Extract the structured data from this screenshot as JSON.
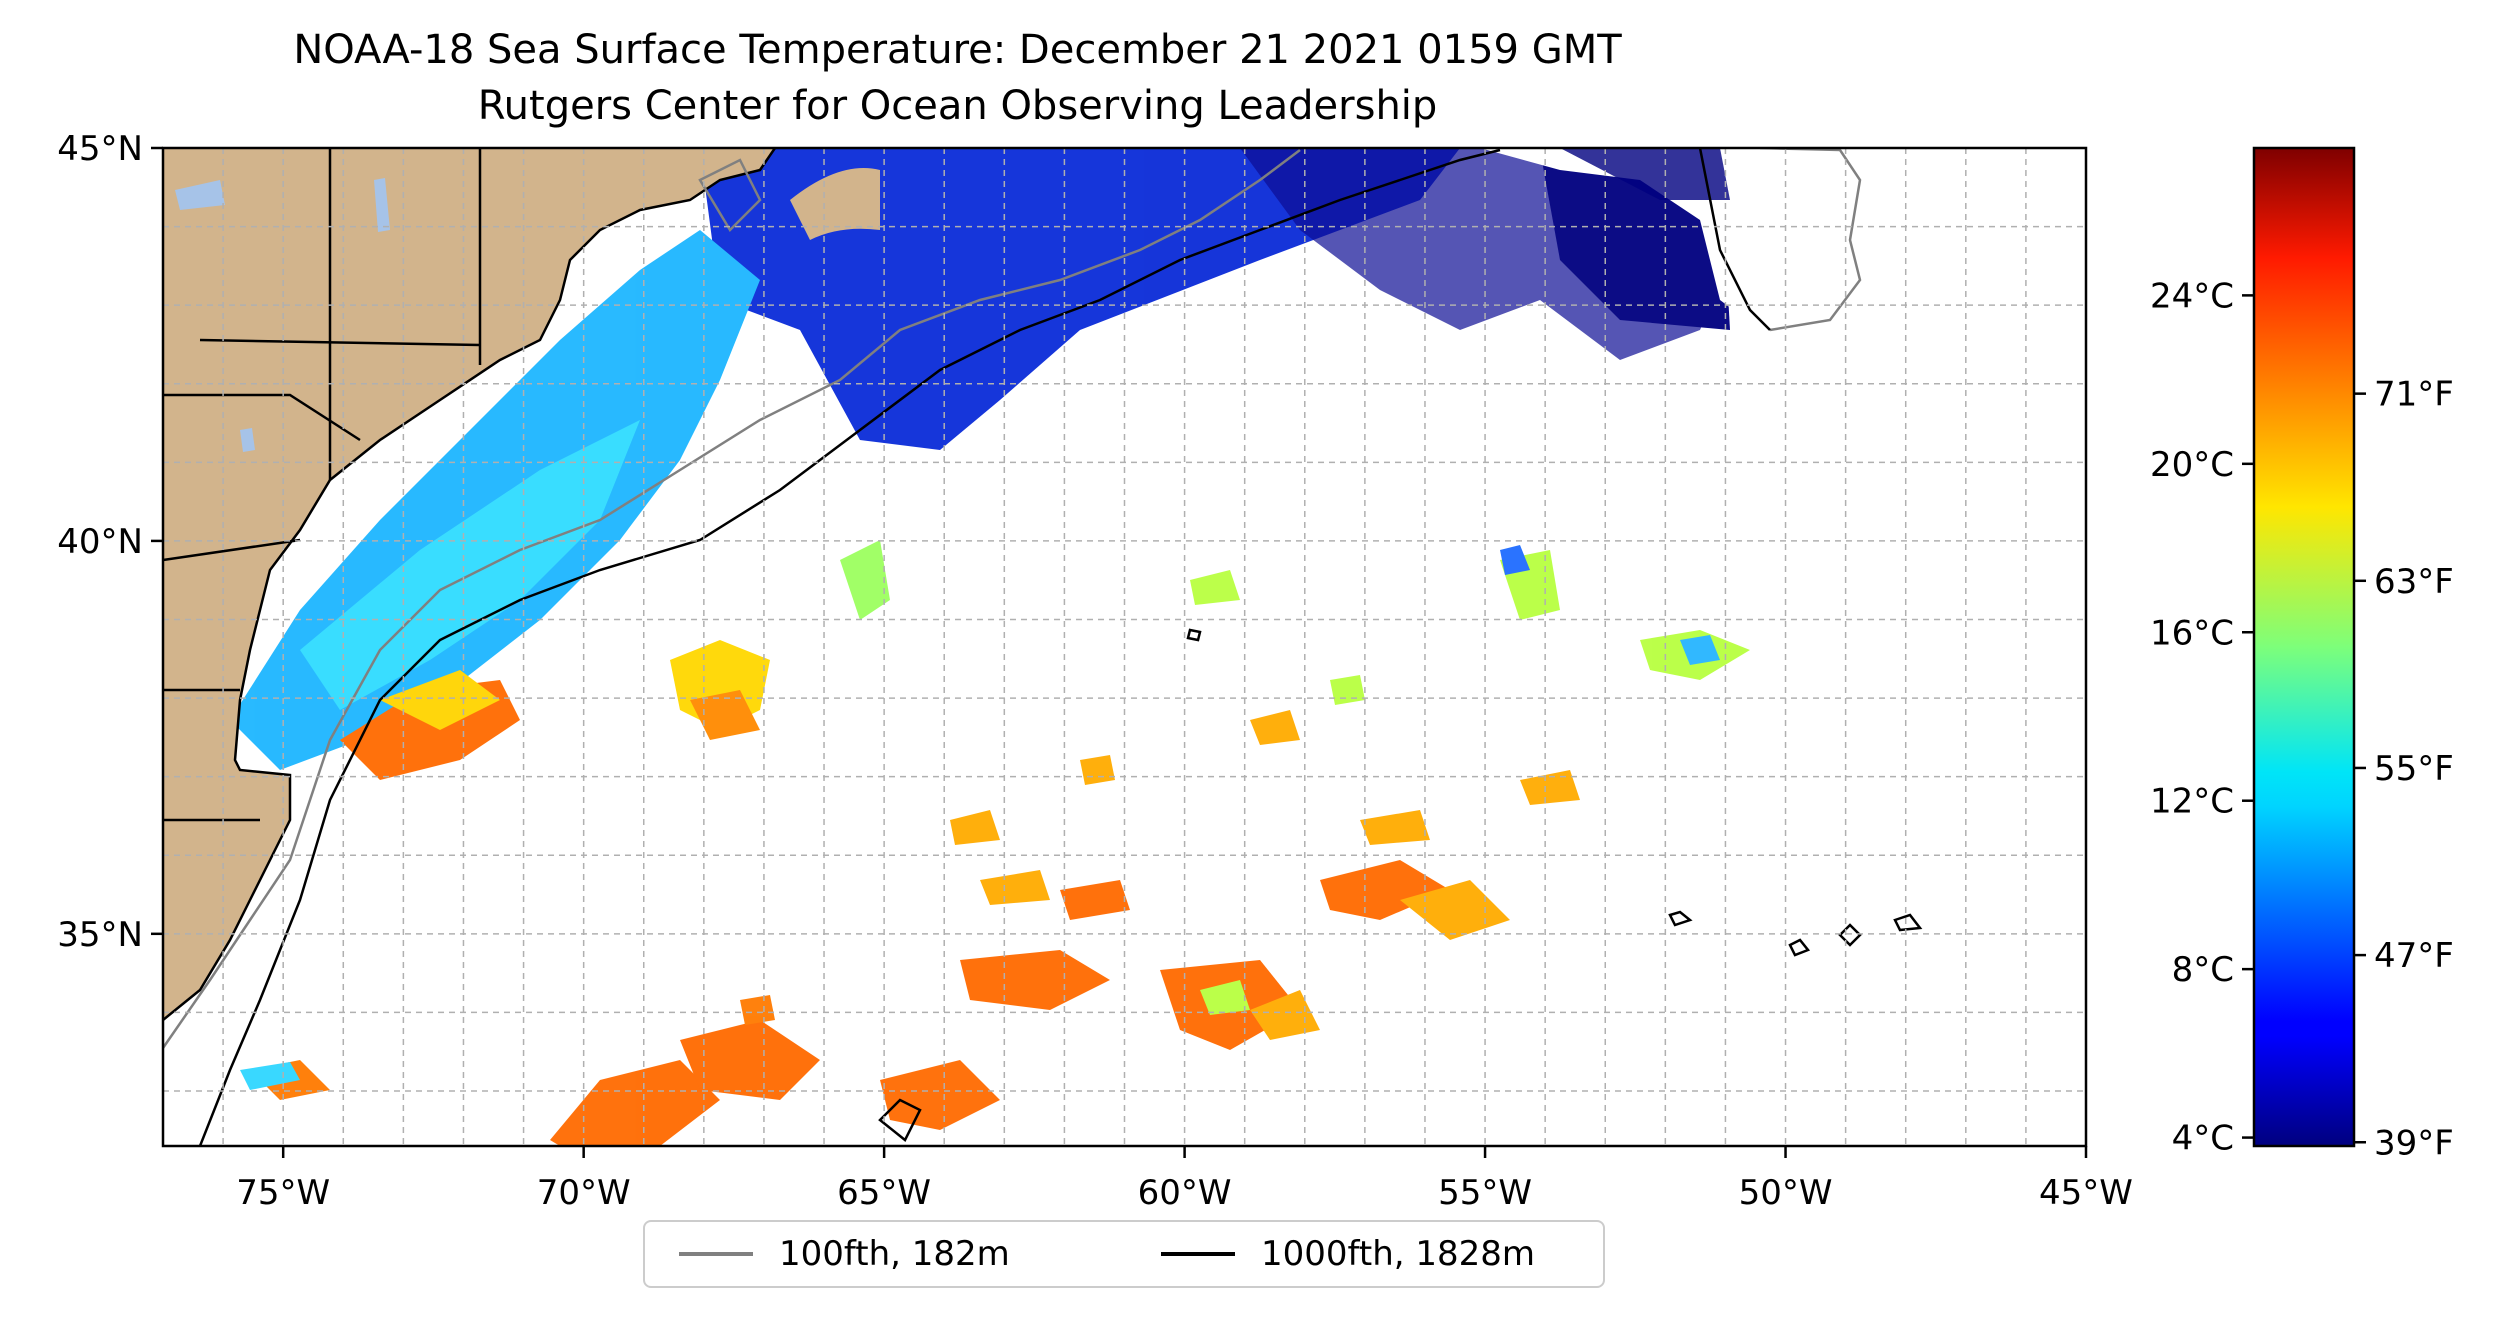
{
  "title": "NOAA-18 Sea Surface Temperature: December 21 2021 0159 GMT",
  "subtitle": "Rutgers Center for Ocean Observing Leadership",
  "map": {
    "lon_range": [
      -77,
      -45
    ],
    "lat_range": [
      32.3,
      45
    ],
    "lon_ticks": [
      {
        "value": -75,
        "label": "75°W"
      },
      {
        "value": -70,
        "label": "70°W"
      },
      {
        "value": -65,
        "label": "65°W"
      },
      {
        "value": -60,
        "label": "60°W"
      },
      {
        "value": -55,
        "label": "55°W"
      },
      {
        "value": -50,
        "label": "50°W"
      },
      {
        "value": -45,
        "label": "45°W"
      }
    ],
    "lat_ticks": [
      {
        "value": 45,
        "label": "45°N"
      },
      {
        "value": 40,
        "label": "40°N"
      },
      {
        "value": 35,
        "label": "35°N"
      }
    ],
    "gridlines": true,
    "land_color": "#d2b48c",
    "lake_color": "#a6c3e8"
  },
  "colorbar": {
    "colormap": "jet",
    "range_c": [
      3.8,
      27.5
    ],
    "celsius_ticks": [
      {
        "value": 4,
        "label": "4°C"
      },
      {
        "value": 8,
        "label": "8°C"
      },
      {
        "value": 12,
        "label": "12°C"
      },
      {
        "value": 16,
        "label": "16°C"
      },
      {
        "value": 20,
        "label": "20°C"
      },
      {
        "value": 24,
        "label": "24°C"
      }
    ],
    "fahrenheit_ticks": [
      {
        "value": 39,
        "label": "39°F"
      },
      {
        "value": 47,
        "label": "47°F"
      },
      {
        "value": 55,
        "label": "55°F"
      },
      {
        "value": 63,
        "label": "63°F"
      },
      {
        "value": 71,
        "label": "71°F"
      }
    ]
  },
  "legend": {
    "items": [
      {
        "label": "100fth, 182m",
        "color": "#808080"
      },
      {
        "label": "1000fth, 1828m",
        "color": "#000000"
      }
    ]
  }
}
